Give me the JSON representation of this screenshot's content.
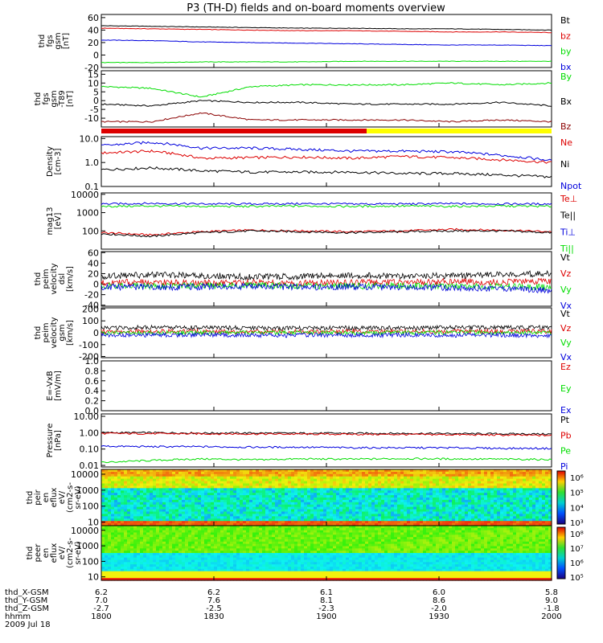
{
  "title": "P3 (TH-D) fields and on-board moments overview",
  "colors": {
    "black": "#000000",
    "red": "#dd0000",
    "green": "#00dd00",
    "blue": "#0000dd",
    "yellow": "#ffff00",
    "darkred": "#8b0000"
  },
  "chart_data": {
    "type": "line",
    "x_axis": {
      "rows": [
        {
          "label": "thd_X-GSM",
          "values": [
            "6.2",
            "6.2",
            "6.1",
            "6.0",
            "5.8"
          ]
        },
        {
          "label": "thd_Y-GSM",
          "values": [
            "7.0",
            "7.6",
            "8.1",
            "8.6",
            "9.0"
          ]
        },
        {
          "label": "thd_Z-GSM",
          "values": [
            "-2.7",
            "-2.5",
            "-2.3",
            "-2.0",
            "-1.8"
          ]
        },
        {
          "label": "hhmm",
          "values": [
            "1800",
            "1830",
            "1900",
            "1930",
            "2000"
          ]
        }
      ],
      "date": "2009 Jul 18",
      "range": [
        "18:00",
        "20:00"
      ]
    },
    "panels": [
      {
        "id": "fgs_gse",
        "ylabel": [
          "thd",
          "fgs",
          "gsm",
          "[nT]"
        ],
        "scale": "linear",
        "ylim": [
          -20,
          65
        ],
        "ticks": [
          "60",
          "40",
          "20",
          "0",
          "-20"
        ],
        "tickvals": [
          60,
          40,
          20,
          0,
          -20
        ],
        "series": [
          {
            "name": "Bt",
            "color": "#000000",
            "values": [
              47,
              46,
              45,
              44,
              43,
              43,
              42,
              42,
              41,
              40
            ]
          },
          {
            "name": "bz",
            "color": "#dd0000",
            "values": [
              43,
              42,
              41,
              40,
              39,
              39,
              38,
              37,
              37,
              36
            ]
          },
          {
            "name": "by",
            "color": "#00dd00",
            "values": [
              -12,
              -12,
              -11,
              -11,
              -11,
              -10,
              -10,
              -10,
              -10,
              -10
            ]
          },
          {
            "name": "bx",
            "color": "#0000dd",
            "values": [
              24,
              23,
              21,
              20,
              19,
              18,
              17,
              16,
              16,
              15
            ]
          }
        ]
      },
      {
        "id": "fgs_dsl",
        "ylabel": [
          "thd",
          "fgs",
          "gsm",
          "-T89",
          "[nT]"
        ],
        "scale": "linear",
        "ylim": [
          -15,
          17
        ],
        "ticks": [
          "15",
          "10",
          "5",
          "0",
          "-5",
          "-10"
        ],
        "tickvals": [
          15,
          10,
          5,
          0,
          -5,
          -10
        ],
        "series": [
          {
            "name": "By",
            "color": "#00dd00",
            "values": [
              8,
              7,
              2,
              8,
              9,
              9,
              9,
              10,
              9,
              10
            ]
          },
          {
            "name": "Bx",
            "color": "#000000",
            "values": [
              -2,
              -3,
              0,
              -1,
              -1,
              -2,
              -2,
              -2,
              -1,
              -3
            ]
          },
          {
            "name": "Bz",
            "color": "#8b0000",
            "values": [
              -12,
              -12,
              -7,
              -11,
              -11,
              -11,
              -11,
              -12,
              -11,
              -12
            ]
          }
        ]
      },
      {
        "id": "density",
        "ylabel": [
          "Density",
          "[cm-3]"
        ],
        "scale": "log",
        "ylim": [
          0.1,
          12
        ],
        "ticks": [
          "10.0",
          "1.0",
          "0.1"
        ],
        "tickvals": [
          10,
          1,
          0.1
        ],
        "series": [
          {
            "name": "Ne",
            "color": "#dd0000",
            "values": [
              2.5,
              3,
              1.5,
              1.6,
              1.7,
              1.5,
              1.8,
              1.6,
              1.3,
              1.0
            ]
          },
          {
            "name": "Ni",
            "color": "#000000",
            "values": [
              0.5,
              0.6,
              0.45,
              0.4,
              0.4,
              0.4,
              0.35,
              0.35,
              0.3,
              0.25
            ]
          },
          {
            "name": "Npot",
            "color": "#0000dd",
            "values": [
              5,
              7,
              4,
              4,
              3.5,
              3,
              3,
              2.8,
              2,
              1.2
            ]
          }
        ]
      },
      {
        "id": "temperature",
        "ylabel": [
          "mag13",
          "[eV]"
        ],
        "scale": "log",
        "ylim": [
          10,
          12000
        ],
        "ticks": [
          "10000",
          "1000",
          "100"
        ],
        "tickvals": [
          10000,
          1000,
          100
        ],
        "series": [
          {
            "name": "Te⊥",
            "color": "#dd0000",
            "values": [
              80,
              60,
              90,
              110,
              100,
              90,
              100,
              120,
              110,
              90
            ]
          },
          {
            "name": "Te||",
            "color": "#000000",
            "values": [
              70,
              50,
              80,
              100,
              90,
              80,
              90,
              100,
              100,
              80
            ]
          },
          {
            "name": "Ti⊥",
            "color": "#0000dd",
            "values": [
              3000,
              3200,
              3000,
              3000,
              3100,
              3000,
              3000,
              3100,
              3000,
              3000
            ]
          },
          {
            "name": "Ti||",
            "color": "#00dd00",
            "values": [
              2200,
              2300,
              2200,
              2200,
              2300,
              2200,
              2300,
              2200,
              2300,
              2200
            ]
          }
        ]
      },
      {
        "id": "peim_vel_dsl",
        "ylabel": [
          "thd",
          "peim",
          "velocity",
          "dsl",
          "[km/s]"
        ],
        "scale": "linear",
        "ylim": [
          -42,
          62
        ],
        "ticks": [
          "60",
          "40",
          "20",
          "0",
          "-20",
          "-40"
        ],
        "tickvals": [
          60,
          40,
          20,
          0,
          -20,
          -40
        ],
        "series": [
          {
            "name": "Vt",
            "color": "#000000",
            "values": [
              15,
              18,
              16,
              14,
              15,
              17,
              15,
              16,
              18,
              20
            ]
          },
          {
            "name": "Vz",
            "color": "#dd0000",
            "values": [
              3,
              4,
              2,
              3,
              2,
              4,
              3,
              5,
              4,
              6
            ]
          },
          {
            "name": "Vy",
            "color": "#00dd00",
            "values": [
              -3,
              -4,
              -3,
              -2,
              -3,
              -4,
              -3,
              -5,
              -4,
              -6
            ]
          },
          {
            "name": "Vx",
            "color": "#0000dd",
            "values": [
              -5,
              -6,
              -5,
              -4,
              -6,
              -5,
              -6,
              -7,
              -8,
              -12
            ]
          }
        ]
      },
      {
        "id": "peim_vel_gsm",
        "ylabel": [
          "thd",
          "peim",
          "velocity",
          "gsm",
          "[km/s]"
        ],
        "scale": "linear",
        "ylim": [
          -210,
          210
        ],
        "ticks": [
          "200",
          "100",
          "0",
          "-100",
          "-200"
        ],
        "tickvals": [
          200,
          100,
          0,
          -100,
          -200
        ],
        "series": [
          {
            "name": "Vt",
            "color": "#000000",
            "values": [
              40,
              45,
              42,
              40,
              38,
              42,
              40,
              45,
              42,
              45
            ]
          },
          {
            "name": "Vz",
            "color": "#dd0000",
            "values": [
              10,
              12,
              10,
              8,
              10,
              12,
              10,
              12,
              10,
              12
            ]
          },
          {
            "name": "Vy",
            "color": "#00dd00",
            "values": [
              0,
              -2,
              0,
              2,
              0,
              -2,
              0,
              2,
              0,
              -2
            ]
          },
          {
            "name": "Vx",
            "color": "#0000dd",
            "values": [
              -20,
              -22,
              -18,
              -20,
              -22,
              -20,
              -18,
              -22,
              -20,
              -25
            ]
          }
        ]
      },
      {
        "id": "efield",
        "ylabel": [
          "E=-VxB",
          "[mV/m]"
        ],
        "scale": "linear",
        "ylim": [
          0,
          1
        ],
        "ticks": [
          "1.0",
          "0.8",
          "0.6",
          "0.4",
          "0.2",
          "0.0"
        ],
        "tickvals": [
          1,
          0.8,
          0.6,
          0.4,
          0.2,
          0
        ],
        "series": [
          {
            "name": "Ez",
            "color": "#dd0000",
            "values": []
          },
          {
            "name": "Ey",
            "color": "#00dd00",
            "values": []
          },
          {
            "name": "Ex",
            "color": "#0000dd",
            "values": []
          }
        ]
      },
      {
        "id": "pressure",
        "ylabel": [
          "Pressure",
          "[nPa]"
        ],
        "scale": "log",
        "ylim": [
          0.008,
          14
        ],
        "ticks": [
          "10.00",
          "1.00",
          "0.10",
          "0.01"
        ],
        "tickvals": [
          10,
          1,
          0.1,
          0.01
        ],
        "series": [
          {
            "name": "Pt",
            "color": "#000000",
            "values": [
              1.0,
              1.0,
              0.95,
              0.95,
              0.93,
              0.92,
              0.9,
              0.88,
              0.85,
              0.82
            ]
          },
          {
            "name": "Pb",
            "color": "#dd0000",
            "values": [
              0.9,
              0.88,
              0.86,
              0.84,
              0.82,
              0.8,
              0.78,
              0.76,
              0.72,
              0.68
            ]
          },
          {
            "name": "Pe",
            "color": "#00dd00",
            "values": [
              0.015,
              0.02,
              0.025,
              0.022,
              0.025,
              0.024,
              0.026,
              0.025,
              0.024,
              0.023
            ]
          },
          {
            "name": "Pi",
            "color": "#0000dd",
            "values": [
              0.15,
              0.14,
              0.14,
              0.13,
              0.13,
              0.12,
              0.12,
              0.12,
              0.11,
              0.11
            ]
          }
        ]
      },
      {
        "id": "peir_spec",
        "type": "heatmap",
        "ylabel": [
          "thd",
          "peir",
          "en",
          "eflux",
          "eV/",
          "(cm2-s-",
          "sr-eV)"
        ],
        "scale": "log",
        "ylim": [
          6,
          20000
        ],
        "ticks": [
          "10000",
          "1000",
          "100",
          "10"
        ],
        "tickvals": [
          10000,
          1000,
          100,
          10
        ],
        "colorbar": {
          "ticks": [
            "10⁶",
            "10⁵",
            "10⁴",
            "10³"
          ]
        }
      },
      {
        "id": "peer_spec",
        "type": "heatmap",
        "ylabel": [
          "thd",
          "peer",
          "en",
          "eflux",
          "eV/",
          "(cm2-s-",
          "sr-eV)"
        ],
        "scale": "log",
        "ylim": [
          6,
          20000
        ],
        "ticks": [
          "10000",
          "1000",
          "100",
          "10"
        ],
        "tickvals": [
          10000,
          1000,
          100,
          10
        ],
        "colorbar": {
          "ticks": [
            "10⁸",
            "10⁷",
            "10⁶",
            "10⁵"
          ]
        }
      }
    ]
  }
}
